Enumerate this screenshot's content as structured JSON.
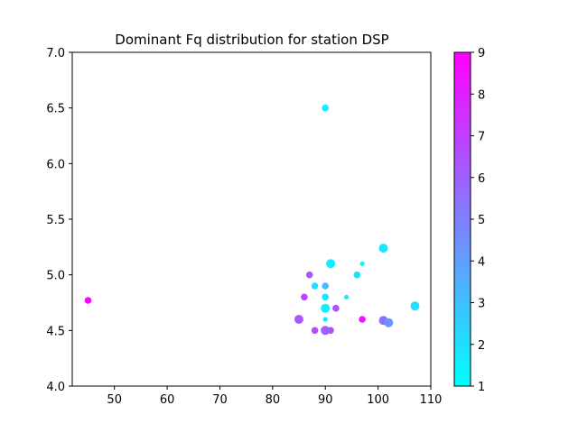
{
  "chart_data": {
    "type": "scatter",
    "title": "Dominant Fq distribution for station DSP",
    "xlabel": "",
    "ylabel": "",
    "xlim": [
      42,
      110
    ],
    "ylim": [
      4.0,
      7.0
    ],
    "xticks": [
      50,
      60,
      70,
      80,
      90,
      100,
      110
    ],
    "yticks": [
      4.0,
      4.5,
      5.0,
      5.5,
      6.0,
      6.5,
      7.0
    ],
    "grid": false,
    "colormap": "cool",
    "colorbar": {
      "min": 1,
      "max": 9,
      "ticks": [
        1,
        2,
        3,
        4,
        5,
        6,
        7,
        8,
        9
      ]
    },
    "colormap_stops": [
      "#00ffff",
      "#ff00ff"
    ],
    "marker_size_scale": "larger values of size are drawn as larger markers",
    "points": [
      {
        "x": 45,
        "y": 4.77,
        "c": 8.8,
        "size": 2
      },
      {
        "x": 90,
        "y": 6.5,
        "c": 1.5,
        "size": 2
      },
      {
        "x": 101,
        "y": 5.24,
        "c": 1.8,
        "size": 3
      },
      {
        "x": 97,
        "y": 5.1,
        "c": 1.4,
        "size": 1
      },
      {
        "x": 91,
        "y": 5.1,
        "c": 1.6,
        "size": 3
      },
      {
        "x": 87,
        "y": 5.0,
        "c": 6.2,
        "size": 2
      },
      {
        "x": 96,
        "y": 5.0,
        "c": 2.0,
        "size": 2
      },
      {
        "x": 88,
        "y": 4.9,
        "c": 2.0,
        "size": 2
      },
      {
        "x": 90,
        "y": 4.9,
        "c": 3.2,
        "size": 2
      },
      {
        "x": 86,
        "y": 4.8,
        "c": 6.8,
        "size": 2
      },
      {
        "x": 90,
        "y": 4.8,
        "c": 1.8,
        "size": 2
      },
      {
        "x": 94,
        "y": 4.8,
        "c": 1.6,
        "size": 1
      },
      {
        "x": 107,
        "y": 4.72,
        "c": 2.0,
        "size": 3
      },
      {
        "x": 90,
        "y": 4.7,
        "c": 1.6,
        "size": 3
      },
      {
        "x": 92,
        "y": 4.7,
        "c": 6.5,
        "size": 2
      },
      {
        "x": 85,
        "y": 4.6,
        "c": 6.2,
        "size": 3
      },
      {
        "x": 90,
        "y": 4.6,
        "c": 1.5,
        "size": 1
      },
      {
        "x": 97,
        "y": 4.6,
        "c": 8.2,
        "size": 2
      },
      {
        "x": 101,
        "y": 4.59,
        "c": 5.4,
        "size": 3
      },
      {
        "x": 102,
        "y": 4.57,
        "c": 4.4,
        "size": 3
      },
      {
        "x": 88,
        "y": 4.5,
        "c": 6.6,
        "size": 2
      },
      {
        "x": 90,
        "y": 4.5,
        "c": 6.0,
        "size": 3
      },
      {
        "x": 91,
        "y": 4.5,
        "c": 6.3,
        "size": 2
      }
    ]
  }
}
